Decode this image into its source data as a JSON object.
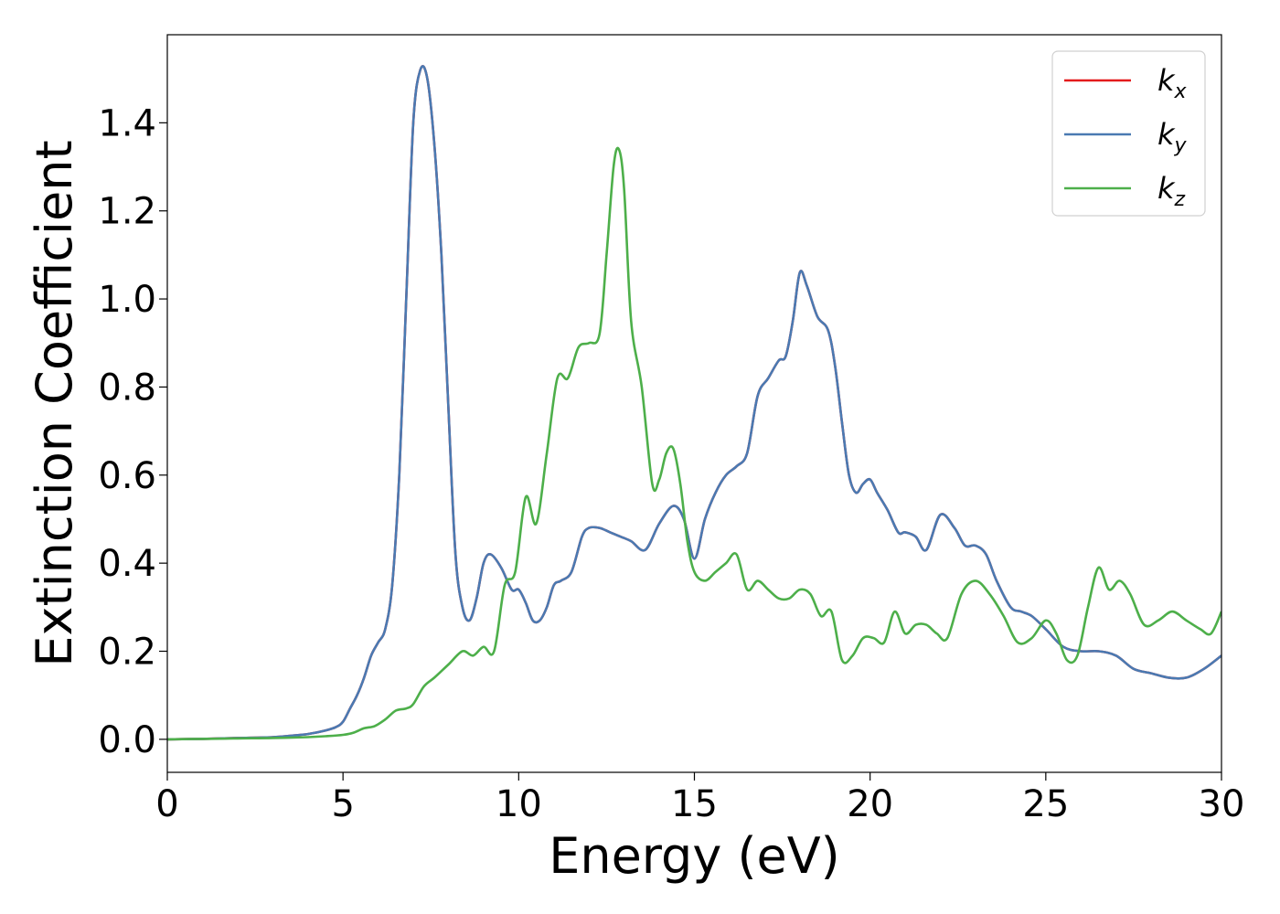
{
  "chart_data": {
    "type": "line",
    "title": "",
    "xlabel": "Energy (eV)",
    "ylabel": "Extinction Coefficient",
    "xlim": [
      0,
      30
    ],
    "ylim": [
      -0.075,
      1.6
    ],
    "xticks": [
      0,
      5,
      10,
      15,
      20,
      25,
      30
    ],
    "xtick_labels": [
      "0",
      "5",
      "10",
      "15",
      "20",
      "25",
      "30"
    ],
    "yticks": [
      0.0,
      0.2,
      0.4,
      0.6,
      0.8,
      1.0,
      1.2,
      1.4
    ],
    "ytick_labels": [
      "0.0",
      "0.2",
      "0.4",
      "0.6",
      "0.8",
      "1.0",
      "1.2",
      "1.4"
    ],
    "grid": false,
    "legend_position": "top-right",
    "series": [
      {
        "name": "k_x",
        "legend_base": "k",
        "legend_sub": "x",
        "color": "#e41a1c",
        "visible_line": false,
        "note_hidden_under": "k_y",
        "x": [
          0,
          1,
          2,
          3,
          3.5,
          4,
          4.5,
          4.8,
          5.0,
          5.2,
          5.4,
          5.6,
          5.8,
          6.0,
          6.2,
          6.4,
          6.6,
          6.8,
          7.0,
          7.2,
          7.4,
          7.6,
          7.8,
          8.0,
          8.2,
          8.4,
          8.6,
          8.8,
          9.0,
          9.2,
          9.5,
          9.8,
          10.0,
          10.2,
          10.4,
          10.6,
          10.8,
          11.0,
          11.2,
          11.5,
          11.8,
          12.0,
          12.3,
          12.6,
          12.9,
          13.2,
          13.6,
          14.0,
          14.4,
          14.7,
          15.0,
          15.3,
          15.6,
          15.9,
          16.2,
          16.5,
          16.8,
          17.1,
          17.4,
          17.6,
          17.8,
          18.0,
          18.2,
          18.5,
          18.8,
          19.0,
          19.2,
          19.4,
          19.6,
          19.8,
          20.0,
          20.2,
          20.5,
          20.8,
          21.0,
          21.3,
          21.6,
          22.0,
          22.4,
          22.7,
          23.0,
          23.3,
          23.6,
          24.0,
          24.3,
          24.6,
          25.0,
          25.5,
          26.0,
          26.5,
          27.0,
          27.5,
          28.0,
          28.5,
          29.0,
          29.5,
          30.0
        ],
        "y": [
          0.0,
          0.001,
          0.003,
          0.005,
          0.008,
          0.012,
          0.02,
          0.028,
          0.04,
          0.07,
          0.1,
          0.14,
          0.19,
          0.22,
          0.25,
          0.35,
          0.6,
          1.0,
          1.4,
          1.52,
          1.5,
          1.35,
          1.1,
          0.75,
          0.42,
          0.3,
          0.27,
          0.32,
          0.4,
          0.42,
          0.39,
          0.34,
          0.34,
          0.31,
          0.27,
          0.27,
          0.3,
          0.35,
          0.36,
          0.38,
          0.46,
          0.48,
          0.48,
          0.47,
          0.46,
          0.45,
          0.43,
          0.49,
          0.53,
          0.5,
          0.41,
          0.5,
          0.56,
          0.6,
          0.62,
          0.65,
          0.78,
          0.82,
          0.86,
          0.87,
          0.95,
          1.06,
          1.03,
          0.96,
          0.93,
          0.85,
          0.72,
          0.6,
          0.56,
          0.58,
          0.59,
          0.56,
          0.52,
          0.47,
          0.47,
          0.46,
          0.43,
          0.51,
          0.48,
          0.44,
          0.44,
          0.42,
          0.36,
          0.3,
          0.29,
          0.28,
          0.25,
          0.21,
          0.2,
          0.2,
          0.19,
          0.16,
          0.15,
          0.14,
          0.14,
          0.16,
          0.19
        ]
      },
      {
        "name": "k_y",
        "legend_base": "k",
        "legend_sub": "y",
        "color": "#4a7ab2",
        "visible_line": true,
        "x": [
          0,
          1,
          2,
          3,
          3.5,
          4,
          4.5,
          4.8,
          5.0,
          5.2,
          5.4,
          5.6,
          5.8,
          6.0,
          6.2,
          6.4,
          6.6,
          6.8,
          7.0,
          7.2,
          7.4,
          7.6,
          7.8,
          8.0,
          8.2,
          8.4,
          8.6,
          8.8,
          9.0,
          9.2,
          9.5,
          9.8,
          10.0,
          10.2,
          10.4,
          10.6,
          10.8,
          11.0,
          11.2,
          11.5,
          11.8,
          12.0,
          12.3,
          12.6,
          12.9,
          13.2,
          13.6,
          14.0,
          14.4,
          14.7,
          15.0,
          15.3,
          15.6,
          15.9,
          16.2,
          16.5,
          16.8,
          17.1,
          17.4,
          17.6,
          17.8,
          18.0,
          18.2,
          18.5,
          18.8,
          19.0,
          19.2,
          19.4,
          19.6,
          19.8,
          20.0,
          20.2,
          20.5,
          20.8,
          21.0,
          21.3,
          21.6,
          22.0,
          22.4,
          22.7,
          23.0,
          23.3,
          23.6,
          24.0,
          24.3,
          24.6,
          25.0,
          25.5,
          26.0,
          26.5,
          27.0,
          27.5,
          28.0,
          28.5,
          29.0,
          29.5,
          30.0
        ],
        "y": [
          0.0,
          0.001,
          0.003,
          0.005,
          0.008,
          0.012,
          0.02,
          0.028,
          0.04,
          0.07,
          0.1,
          0.14,
          0.19,
          0.22,
          0.25,
          0.35,
          0.6,
          1.0,
          1.4,
          1.52,
          1.5,
          1.35,
          1.1,
          0.75,
          0.42,
          0.3,
          0.27,
          0.32,
          0.4,
          0.42,
          0.39,
          0.34,
          0.34,
          0.31,
          0.27,
          0.27,
          0.3,
          0.35,
          0.36,
          0.38,
          0.46,
          0.48,
          0.48,
          0.47,
          0.46,
          0.45,
          0.43,
          0.49,
          0.53,
          0.5,
          0.41,
          0.5,
          0.56,
          0.6,
          0.62,
          0.65,
          0.78,
          0.82,
          0.86,
          0.87,
          0.95,
          1.06,
          1.03,
          0.96,
          0.93,
          0.85,
          0.72,
          0.6,
          0.56,
          0.58,
          0.59,
          0.56,
          0.52,
          0.47,
          0.47,
          0.46,
          0.43,
          0.51,
          0.48,
          0.44,
          0.44,
          0.42,
          0.36,
          0.3,
          0.29,
          0.28,
          0.25,
          0.21,
          0.2,
          0.2,
          0.19,
          0.16,
          0.15,
          0.14,
          0.14,
          0.16,
          0.19
        ]
      },
      {
        "name": "k_z",
        "legend_base": "k",
        "legend_sub": "z",
        "color": "#4daf4a",
        "visible_line": true,
        "x": [
          0,
          1,
          2,
          3,
          4,
          4.5,
          5.0,
          5.3,
          5.6,
          5.9,
          6.2,
          6.5,
          6.8,
          7.0,
          7.3,
          7.6,
          8.0,
          8.4,
          8.7,
          9.0,
          9.3,
          9.6,
          9.9,
          10.2,
          10.5,
          10.8,
          11.1,
          11.4,
          11.7,
          12.0,
          12.3,
          12.5,
          12.7,
          12.85,
          13.0,
          13.2,
          13.5,
          13.8,
          14.0,
          14.2,
          14.4,
          14.6,
          14.8,
          15.0,
          15.3,
          15.6,
          15.9,
          16.2,
          16.5,
          16.8,
          17.1,
          17.4,
          17.7,
          18.0,
          18.3,
          18.6,
          18.9,
          19.2,
          19.5,
          19.8,
          20.1,
          20.4,
          20.7,
          21.0,
          21.3,
          21.6,
          21.9,
          22.2,
          22.6,
          23.0,
          23.4,
          23.8,
          24.2,
          24.6,
          25.0,
          25.3,
          25.6,
          25.9,
          26.2,
          26.5,
          26.8,
          27.1,
          27.4,
          27.8,
          28.2,
          28.6,
          29.0,
          29.4,
          29.7,
          30.0
        ],
        "y": [
          0.0,
          0.001,
          0.002,
          0.003,
          0.005,
          0.007,
          0.01,
          0.015,
          0.025,
          0.03,
          0.045,
          0.065,
          0.07,
          0.08,
          0.12,
          0.14,
          0.17,
          0.2,
          0.19,
          0.21,
          0.2,
          0.35,
          0.38,
          0.55,
          0.49,
          0.65,
          0.82,
          0.82,
          0.89,
          0.9,
          0.92,
          1.1,
          1.3,
          1.34,
          1.25,
          0.95,
          0.8,
          0.58,
          0.59,
          0.65,
          0.66,
          0.58,
          0.45,
          0.38,
          0.36,
          0.38,
          0.4,
          0.42,
          0.34,
          0.36,
          0.34,
          0.32,
          0.32,
          0.34,
          0.33,
          0.28,
          0.29,
          0.18,
          0.19,
          0.23,
          0.23,
          0.22,
          0.29,
          0.24,
          0.26,
          0.26,
          0.24,
          0.23,
          0.33,
          0.36,
          0.33,
          0.28,
          0.22,
          0.23,
          0.27,
          0.24,
          0.18,
          0.19,
          0.3,
          0.39,
          0.34,
          0.36,
          0.33,
          0.26,
          0.27,
          0.29,
          0.27,
          0.25,
          0.24,
          0.29
        ]
      }
    ]
  }
}
